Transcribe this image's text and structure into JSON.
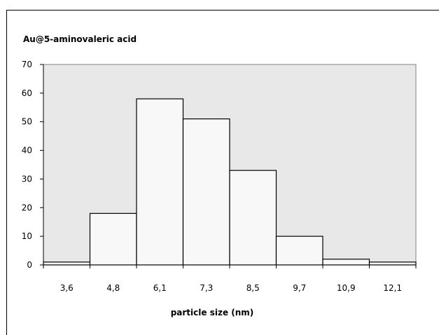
{
  "chart_data": {
    "type": "bar",
    "title": "Au@5-aminovaleric acid",
    "xlabel": "particle size (nm)",
    "ylabel": "",
    "categories": [
      "3,6",
      "4,8",
      "6,1",
      "7,3",
      "8,5",
      "9,7",
      "10,9",
      "12,1"
    ],
    "values": [
      1,
      18,
      58,
      51,
      33,
      10,
      2,
      1
    ],
    "ylim": [
      0,
      70
    ],
    "yticks": [
      0,
      10,
      20,
      30,
      40,
      50,
      60,
      70
    ],
    "grid": false,
    "legend": "none",
    "colors": {
      "plot_background": "#e8e8e8",
      "bar_fill": "#f8f8f8",
      "bar_stroke": "#000000"
    }
  }
}
